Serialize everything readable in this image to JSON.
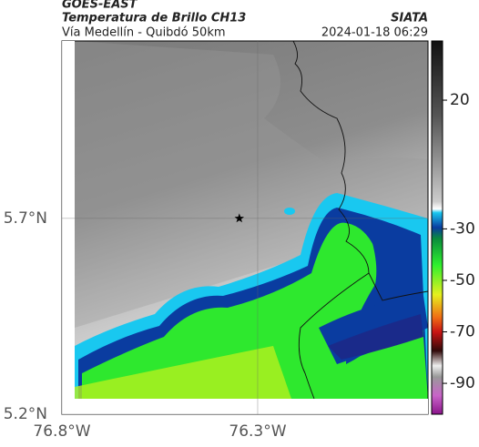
{
  "chart_data": {
    "type": "map",
    "title": "GOES-EAST",
    "subtitle": "Temperatura de Brillo CH13",
    "region": "Vía Medellín - Quibdó 50km",
    "source": "SIATA",
    "datetime": "2024-01-18 06:29",
    "xlim": [
      -76.8,
      -75.865
    ],
    "ylim": [
      5.2,
      6.153
    ],
    "xticks": [
      {
        "value": -76.8,
        "label": "76.8°W"
      },
      {
        "value": -76.3,
        "label": "76.3°W"
      }
    ],
    "yticks": [
      {
        "value": 5.2,
        "label": "5.2°N"
      },
      {
        "value": 5.7,
        "label": "5.7°N"
      }
    ],
    "grid": true,
    "marker": {
      "x": -76.347,
      "y": 5.7
    },
    "colorbar": {
      "lim": [
        -102,
        43
      ],
      "ticks": [
        20,
        -30,
        -50,
        -70,
        -90
      ]
    }
  }
}
